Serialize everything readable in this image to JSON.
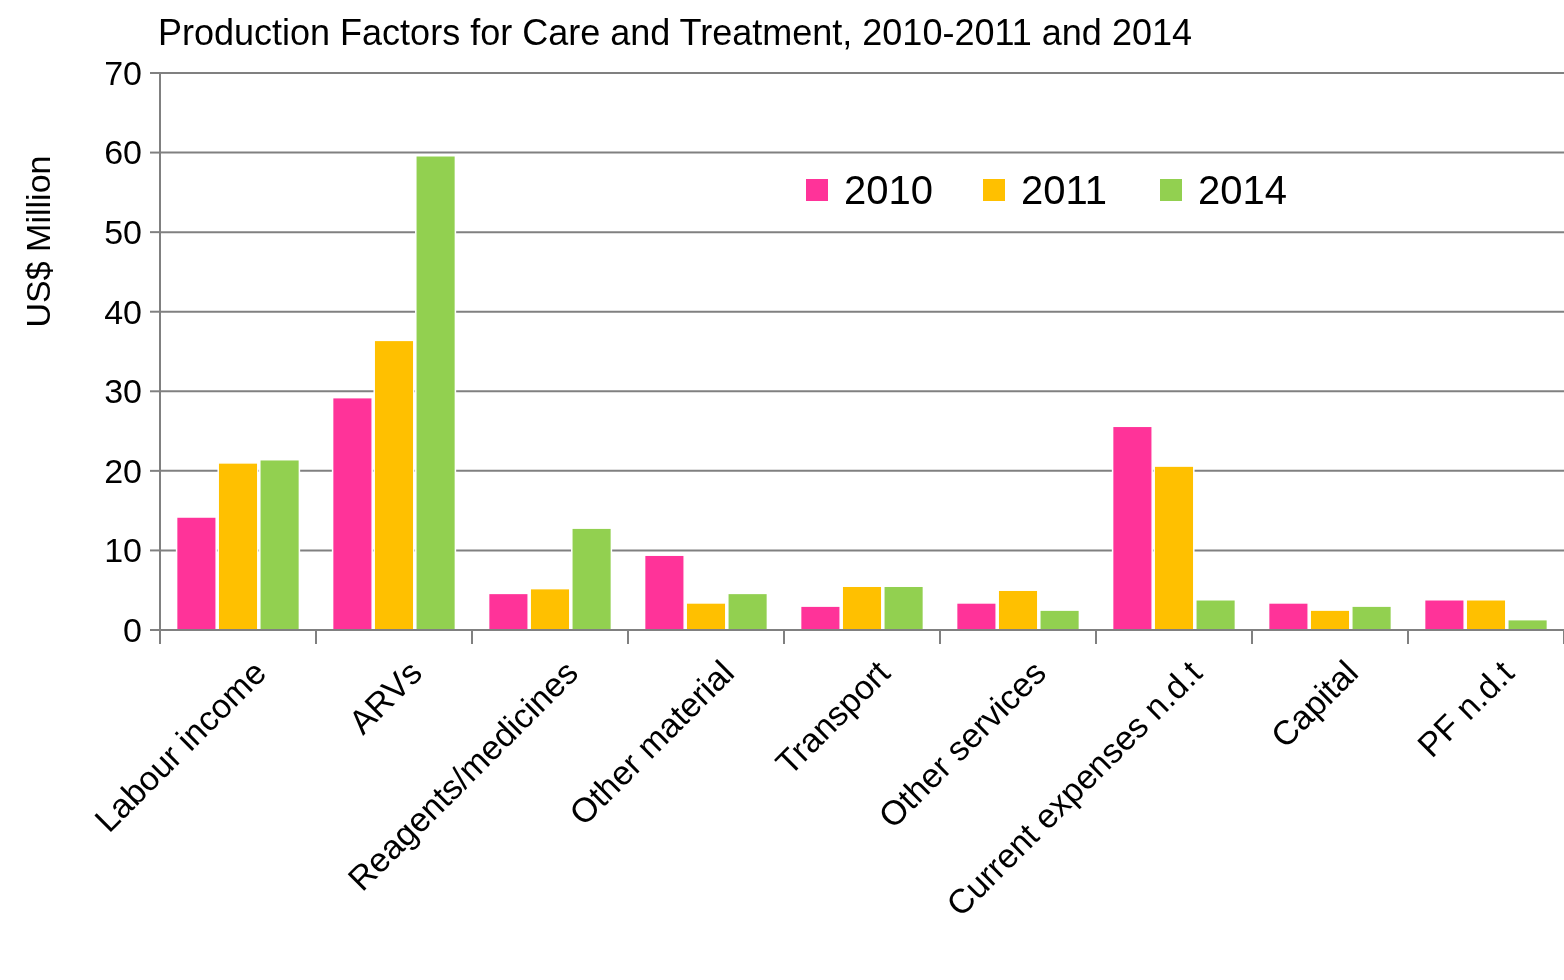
{
  "chart_data": {
    "type": "bar",
    "title": "Production Factors for Care and Treatment,  2010-2011 and 2014",
    "ylabel": "US$ Million",
    "categories": [
      "Labour income",
      "ARVs",
      "Reagents/medicines",
      "Other material",
      "Transport",
      "Other services",
      "Current expenses n.d.t",
      "Capital",
      "PF n.d.t"
    ],
    "series": [
      {
        "name": "2010",
        "color": "#ff3399",
        "values": [
          14.2,
          29.2,
          4.6,
          9.4,
          3.0,
          3.4,
          25.6,
          3.4,
          3.8
        ]
      },
      {
        "name": "2011",
        "color": "#ffc000",
        "values": [
          21.0,
          36.4,
          5.2,
          3.4,
          5.5,
          5.0,
          20.6,
          2.5,
          3.8
        ]
      },
      {
        "name": "2014",
        "color": "#92d050",
        "values": [
          21.4,
          59.6,
          12.8,
          4.6,
          5.5,
          2.5,
          3.8,
          3.0,
          1.3
        ]
      }
    ],
    "ylim": [
      0,
      70
    ],
    "yticks": [
      0,
      10,
      20,
      30,
      40,
      50,
      60,
      70
    ],
    "grid": "y",
    "legend": "top"
  }
}
